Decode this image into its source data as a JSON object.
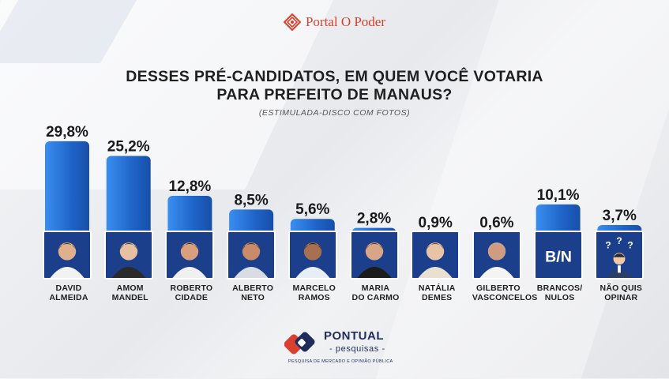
{
  "brand": {
    "name": "Portal O Poder",
    "color": "#d9402f"
  },
  "title_line1": "DESSES PRÉ-CANDIDATOS, EM QUEM VOCÊ VOTARIA",
  "title_line2": "PARA PREFEITO DE MANAUS?",
  "subtitle": "(ESTIMULADA-DISCO COM FOTOS)",
  "chart_data": {
    "type": "bar",
    "title": "DESSES PRÉ-CANDIDATOS, EM QUEM VOCÊ VOTARIA PARA PREFEITO DE MANAUS?",
    "categories": [
      "DAVID ALMEIDA",
      "AMOM MANDEL",
      "ROBERTO CIDADE",
      "ALBERTO NETO",
      "MARCELO RAMOS",
      "MARIA DO CARMO",
      "NATÁLIA DEMES",
      "GILBERTO VASCONCELOS",
      "BRANCOS/ NULOS",
      "NÃO QUIS OPINAR"
    ],
    "values": [
      29.8,
      25.2,
      12.8,
      8.5,
      5.6,
      2.8,
      0.9,
      0.6,
      10.1,
      3.7
    ],
    "labels": [
      "29,8%",
      "25,2%",
      "12,8%",
      "8,5%",
      "5,6%",
      "2,8%",
      "0,9%",
      "0,6%",
      "10,1%",
      "3,7%"
    ],
    "ylim": [
      0,
      30
    ],
    "bar_color": "#1f63c8",
    "bar_color_light": "#3a8ef0",
    "grid": false,
    "legend": "none"
  },
  "candidates": [
    {
      "line1": "DAVID",
      "line2": "ALMEIDA",
      "photo": "person-photo"
    },
    {
      "line1": "AMOM",
      "line2": "MANDEL",
      "photo": "person-photo"
    },
    {
      "line1": "ROBERTO",
      "line2": "CIDADE",
      "photo": "person-photo"
    },
    {
      "line1": "ALBERTO",
      "line2": "NETO",
      "photo": "person-photo"
    },
    {
      "line1": "MARCELO",
      "line2": "RAMOS",
      "photo": "person-photo"
    },
    {
      "line1": "MARIA",
      "line2": "DO CARMO",
      "photo": "person-photo"
    },
    {
      "line1": "NATÁLIA",
      "line2": "DEMES",
      "photo": "person-photo"
    },
    {
      "line1": "GILBERTO",
      "line2": "VASCONCELOS",
      "photo": "person-photo"
    },
    {
      "line1": "BRANCOS/",
      "line2": "NULOS",
      "photo": "text-tile",
      "tile_text": "B/N"
    },
    {
      "line1": "NÃO QUIS",
      "line2": "OPINAR",
      "photo": "question-person-icon",
      "tile_text": "? ? ?"
    }
  ],
  "footer": {
    "name": "PONTUAL",
    "sub": "- pesquisas -",
    "tagline": "PESQUISA DE MERCADO E OPINIÃO PÚBLICA",
    "color": "#1f2c5c",
    "accent": "#d9402f"
  }
}
